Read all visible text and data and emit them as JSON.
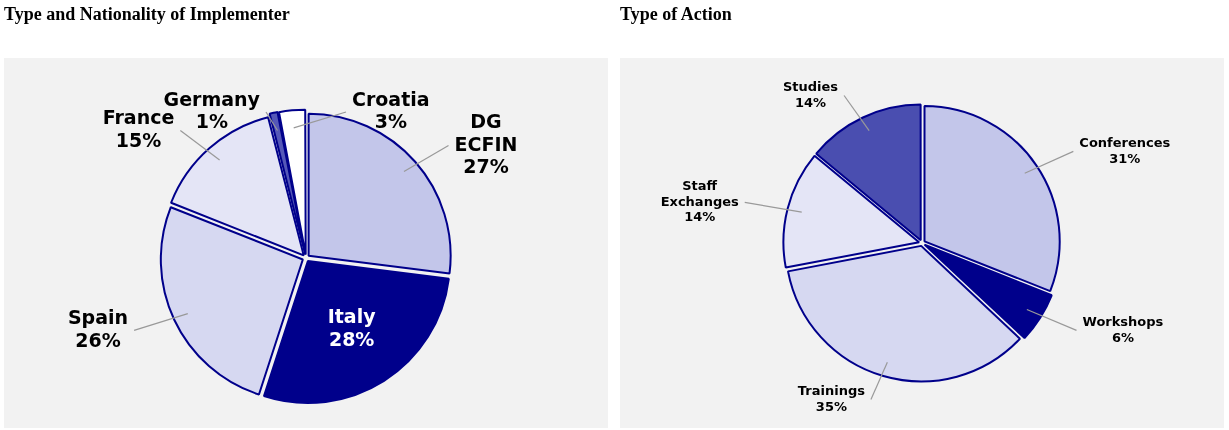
{
  "chart_data": [
    {
      "type": "pie",
      "title": "Type and Nationality of Implementer",
      "categories": [
        "DG ECFIN",
        "Italy",
        "Spain",
        "France",
        "Germany",
        "Croatia"
      ],
      "values": [
        27,
        28,
        26,
        15,
        1,
        3
      ],
      "value_labels": [
        "27%",
        "28%",
        "26%",
        "15%",
        "1%",
        "3%"
      ],
      "colors": [
        "#c3c6ea",
        "#00008b",
        "#d6d8f1",
        "#e4e5f6",
        "#5558b8",
        "#ffffff"
      ]
    },
    {
      "type": "pie",
      "title": "Type of Action",
      "categories": [
        "Conferences",
        "Workshops",
        "Trainings",
        "Staff Exchanges",
        "Studies"
      ],
      "values": [
        31,
        6,
        35,
        14,
        14
      ],
      "value_labels": [
        "31%",
        "6%",
        "35%",
        "14%",
        "14%"
      ],
      "colors": [
        "#c3c6ea",
        "#00008b",
        "#d6d8f1",
        "#e4e5f6",
        "#4a4eb0"
      ]
    }
  ]
}
